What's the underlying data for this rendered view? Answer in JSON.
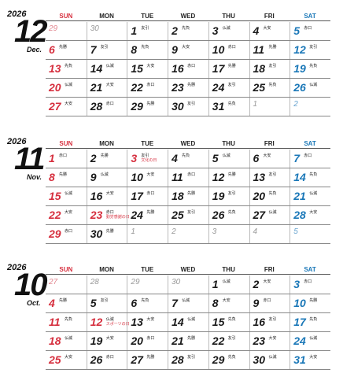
{
  "dow_labels": [
    "SUN",
    "MON",
    "TUE",
    "WED",
    "THU",
    "FRI",
    "SAT"
  ],
  "colors": {
    "sunday": "#d6303f",
    "saturday": "#1b78b8",
    "text": "#1a1a1a",
    "muted": "#999999"
  },
  "months": [
    {
      "year": "2026",
      "number": "12",
      "abbr": "Dec.",
      "weeks": [
        [
          {
            "d": "29",
            "other": true,
            "r": ""
          },
          {
            "d": "30",
            "other": true,
            "r": ""
          },
          {
            "d": "1",
            "r": "友引"
          },
          {
            "d": "2",
            "r": "先負"
          },
          {
            "d": "3",
            "r": "仏滅"
          },
          {
            "d": "4",
            "r": "大安"
          },
          {
            "d": "5",
            "r": "赤口"
          }
        ],
        [
          {
            "d": "6",
            "r": "先勝"
          },
          {
            "d": "7",
            "r": "友引"
          },
          {
            "d": "8",
            "r": "先負"
          },
          {
            "d": "9",
            "r": "大安"
          },
          {
            "d": "10",
            "r": "赤口"
          },
          {
            "d": "11",
            "r": "先勝"
          },
          {
            "d": "12",
            "r": "友引"
          }
        ],
        [
          {
            "d": "13",
            "r": "先負"
          },
          {
            "d": "14",
            "r": "仏滅"
          },
          {
            "d": "15",
            "r": "大安"
          },
          {
            "d": "16",
            "r": "赤口"
          },
          {
            "d": "17",
            "r": "先勝"
          },
          {
            "d": "18",
            "r": "友引"
          },
          {
            "d": "19",
            "r": "先負"
          }
        ],
        [
          {
            "d": "20",
            "r": "仏滅"
          },
          {
            "d": "21",
            "r": "大安"
          },
          {
            "d": "22",
            "r": "赤口"
          },
          {
            "d": "23",
            "r": "先勝"
          },
          {
            "d": "24",
            "r": "友引"
          },
          {
            "d": "25",
            "r": "先負"
          },
          {
            "d": "26",
            "r": "仏滅"
          }
        ],
        [
          {
            "d": "27",
            "r": "大安"
          },
          {
            "d": "28",
            "r": "赤口"
          },
          {
            "d": "29",
            "r": "先勝"
          },
          {
            "d": "30",
            "r": "友引"
          },
          {
            "d": "31",
            "r": "先負"
          },
          {
            "d": "1",
            "other": true,
            "r": ""
          },
          {
            "d": "2",
            "other": true,
            "r": ""
          }
        ]
      ]
    },
    {
      "year": "2026",
      "number": "11",
      "abbr": "Nov.",
      "weeks": [
        [
          {
            "d": "1",
            "r": "赤口"
          },
          {
            "d": "2",
            "r": "先勝"
          },
          {
            "d": "3",
            "r": "友引",
            "h": "文化の日",
            "holiday": true
          },
          {
            "d": "4",
            "r": "先負"
          },
          {
            "d": "5",
            "r": "仏滅"
          },
          {
            "d": "6",
            "r": "大安"
          },
          {
            "d": "7",
            "r": "赤口"
          }
        ],
        [
          {
            "d": "8",
            "r": "先勝"
          },
          {
            "d": "9",
            "r": "仏滅"
          },
          {
            "d": "10",
            "r": "大安"
          },
          {
            "d": "11",
            "r": "赤口"
          },
          {
            "d": "12",
            "r": "先勝"
          },
          {
            "d": "13",
            "r": "友引"
          },
          {
            "d": "14",
            "r": "先負"
          }
        ],
        [
          {
            "d": "15",
            "r": "仏滅"
          },
          {
            "d": "16",
            "r": "大安"
          },
          {
            "d": "17",
            "r": "赤口"
          },
          {
            "d": "18",
            "r": "先勝"
          },
          {
            "d": "19",
            "r": "友引"
          },
          {
            "d": "20",
            "r": "先負"
          },
          {
            "d": "21",
            "r": "仏滅"
          }
        ],
        [
          {
            "d": "22",
            "r": "大安"
          },
          {
            "d": "23",
            "r": "赤口",
            "h": "勤労感謝の日",
            "holiday": true
          },
          {
            "d": "24",
            "r": "先勝"
          },
          {
            "d": "25",
            "r": "友引"
          },
          {
            "d": "26",
            "r": "先負"
          },
          {
            "d": "27",
            "r": "仏滅"
          },
          {
            "d": "28",
            "r": "大安"
          }
        ],
        [
          {
            "d": "29",
            "r": "赤口"
          },
          {
            "d": "30",
            "r": "先勝"
          },
          {
            "d": "1",
            "other": true,
            "r": ""
          },
          {
            "d": "2",
            "other": true,
            "r": ""
          },
          {
            "d": "3",
            "other": true,
            "r": ""
          },
          {
            "d": "4",
            "other": true,
            "r": ""
          },
          {
            "d": "5",
            "other": true,
            "r": ""
          }
        ]
      ]
    },
    {
      "year": "2026",
      "number": "10",
      "abbr": "Oct.",
      "weeks": [
        [
          {
            "d": "27",
            "other": true,
            "r": ""
          },
          {
            "d": "28",
            "other": true,
            "r": ""
          },
          {
            "d": "29",
            "other": true,
            "r": ""
          },
          {
            "d": "30",
            "other": true,
            "r": ""
          },
          {
            "d": "1",
            "r": "仏滅"
          },
          {
            "d": "2",
            "r": "大安"
          },
          {
            "d": "3",
            "r": "赤口"
          }
        ],
        [
          {
            "d": "4",
            "r": "先勝"
          },
          {
            "d": "5",
            "r": "友引"
          },
          {
            "d": "6",
            "r": "先負"
          },
          {
            "d": "7",
            "r": "仏滅"
          },
          {
            "d": "8",
            "r": "大安"
          },
          {
            "d": "9",
            "r": "赤口"
          },
          {
            "d": "10",
            "r": "先勝"
          }
        ],
        [
          {
            "d": "11",
            "r": "先負"
          },
          {
            "d": "12",
            "r": "仏滅",
            "h": "スポーツの日",
            "holiday": true
          },
          {
            "d": "13",
            "r": "大安"
          },
          {
            "d": "14",
            "r": "仏滅"
          },
          {
            "d": "15",
            "r": "先負"
          },
          {
            "d": "16",
            "r": "友引"
          },
          {
            "d": "17",
            "r": "先負"
          }
        ],
        [
          {
            "d": "18",
            "r": "仏滅"
          },
          {
            "d": "19",
            "r": "大安"
          },
          {
            "d": "20",
            "r": "赤口"
          },
          {
            "d": "21",
            "r": "先勝"
          },
          {
            "d": "22",
            "r": "友引"
          },
          {
            "d": "23",
            "r": "大安"
          },
          {
            "d": "24",
            "r": "仏滅"
          }
        ],
        [
          {
            "d": "25",
            "r": "大安"
          },
          {
            "d": "26",
            "r": "赤口"
          },
          {
            "d": "27",
            "r": "先勝"
          },
          {
            "d": "28",
            "r": "友引"
          },
          {
            "d": "29",
            "r": "先負"
          },
          {
            "d": "30",
            "r": "仏滅"
          },
          {
            "d": "31",
            "r": "大安"
          }
        ]
      ]
    }
  ]
}
